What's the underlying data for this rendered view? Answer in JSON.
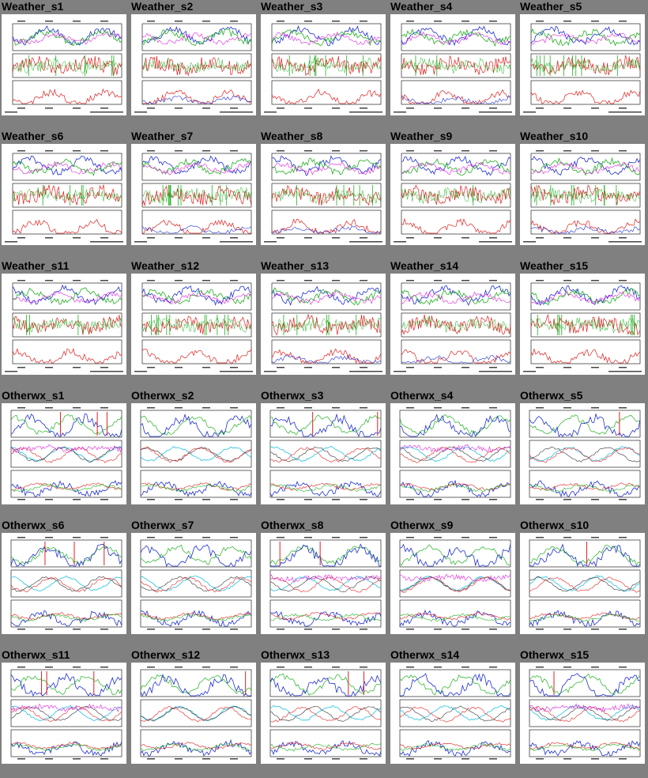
{
  "sections": [
    {
      "id": "weather",
      "thumb_style": "weather",
      "items": [
        "Weather_s1",
        "Weather_s2",
        "Weather_s3",
        "Weather_s4",
        "Weather_s5",
        "Weather_s6",
        "Weather_s7",
        "Weather_s8",
        "Weather_s9",
        "Weather_s10",
        "Weather_s11",
        "Weather_s12",
        "Weather_s13",
        "Weather_s14",
        "Weather_s15"
      ]
    },
    {
      "id": "otherwx",
      "thumb_style": "otherwx",
      "items": [
        "Otherwx_s1",
        "Otherwx_s2",
        "Otherwx_s3",
        "Otherwx_s4",
        "Otherwx_s5",
        "Otherwx_s6",
        "Otherwx_s7",
        "Otherwx_s8",
        "Otherwx_s9",
        "Otherwx_s10",
        "Otherwx_s11",
        "Otherwx_s12",
        "Otherwx_s13",
        "Otherwx_s14",
        "Otherwx_s15"
      ]
    }
  ],
  "colors": {
    "page_background": "#808080",
    "thumbnail_background": "#ffffff",
    "series_red": "#e02020",
    "series_green": "#20b020",
    "series_blue": "#2030d0",
    "series_cyan": "#20c0e0",
    "series_magenta": "#e020e0",
    "series_orange": "#e08020"
  },
  "icons": {
    "thumbnail": "weather-plot-thumbnail"
  }
}
